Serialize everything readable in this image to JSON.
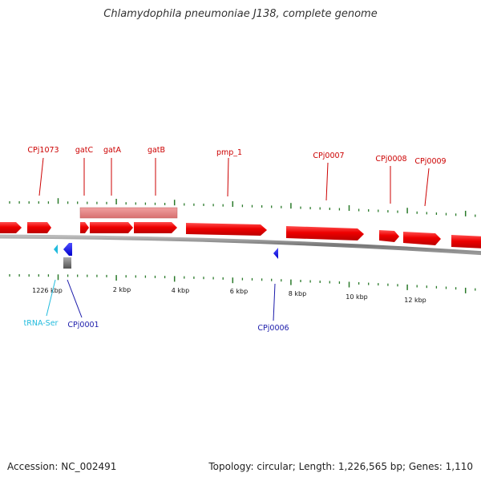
{
  "title": "Chlamydophila pneumoniae J138, complete genome",
  "footer": {
    "accession": "Accession: NC_002491",
    "summary": "Topology: circular; Length: 1,226,565 bp; Genes: 1,110"
  },
  "colors": {
    "gene_forward": "#ee0000",
    "gene_forward_label": "#cc0000",
    "gene_reverse": "#1a1aee",
    "gene_reverse_label": "#1a1aaa",
    "trna": "#22bbdd",
    "operon_bar": "#e88a8a",
    "backbone": "#8c8c8c",
    "ticks": "#2a7a2a",
    "misc_feature": "#777777"
  },
  "scale_labels": [
    "1226 kbp",
    "2 kbp",
    "4 kbp",
    "6 kbp",
    "8 kbp",
    "10 kbp",
    "12 kbp"
  ],
  "forward_genes": [
    "CPj1073",
    "gatC",
    "gatA",
    "gatB",
    "pmp_1",
    "CPj0007",
    "CPj0008",
    "CPj0009"
  ],
  "reverse_genes": [
    "tRNA-Ser",
    "CPj0001",
    "CPj0006"
  ]
}
